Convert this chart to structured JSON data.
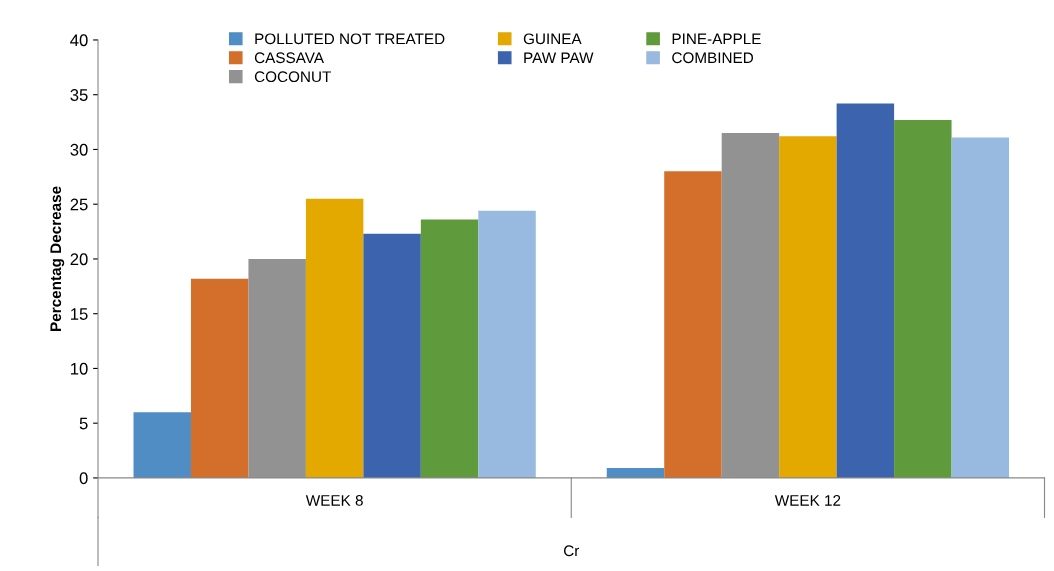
{
  "chart_data": {
    "type": "bar",
    "xlabel": "Cr",
    "ylabel": "Percentag Decrease",
    "categories": [
      "WEEK 8",
      "WEEK 12"
    ],
    "series": [
      {
        "name": "POLLUTED NOT TREATED",
        "color": "#4f8dc4",
        "values": [
          6.0,
          0.9
        ]
      },
      {
        "name": "CASSAVA",
        "color": "#d46f2b",
        "values": [
          18.2,
          28.0
        ]
      },
      {
        "name": "COCONUT",
        "color": "#929292",
        "values": [
          20.0,
          31.5
        ]
      },
      {
        "name": "GUINEA",
        "color": "#e3a900",
        "values": [
          25.5,
          31.2
        ]
      },
      {
        "name": "PAW PAW",
        "color": "#3c64ae",
        "values": [
          22.3,
          34.2
        ]
      },
      {
        "name": "PINE-APPLE",
        "color": "#5f9a3c",
        "values": [
          23.6,
          32.7
        ]
      },
      {
        "name": "COMBINED",
        "color": "#98b9e0",
        "values": [
          24.4,
          31.1
        ]
      }
    ],
    "ylim": [
      0,
      40
    ],
    "yticks": [
      0,
      5,
      10,
      15,
      20,
      25,
      30,
      35,
      40
    ],
    "grid": false,
    "legend": "top"
  }
}
